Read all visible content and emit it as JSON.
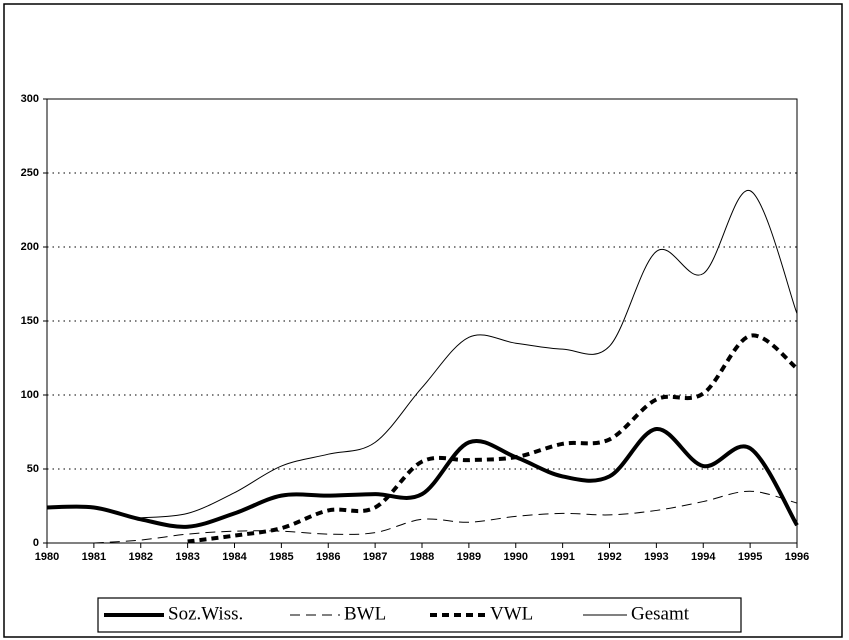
{
  "chart_data": {
    "type": "line",
    "categories": [
      "1980",
      "1981",
      "1982",
      "1983",
      "1984",
      "1985",
      "1986",
      "1987",
      "1988",
      "1989",
      "1990",
      "1991",
      "1992",
      "1993",
      "1994",
      "1995",
      "1996"
    ],
    "series": [
      {
        "name": "Soz.Wiss.",
        "color": "#000000",
        "line_width": 4,
        "dash": "none",
        "values": [
          24,
          24,
          16,
          11,
          20,
          32,
          32,
          33,
          33,
          68,
          58,
          45,
          45,
          77,
          52,
          64,
          12
        ]
      },
      {
        "name": "BWL",
        "color": "#000000",
        "line_width": 1,
        "dash": "10 6",
        "values": [
          null,
          0,
          2,
          6,
          8,
          8,
          6,
          7,
          16,
          14,
          18,
          20,
          19,
          22,
          28,
          35,
          27
        ]
      },
      {
        "name": "VWL",
        "color": "#000000",
        "line_width": 4,
        "dash": "7 5",
        "values": [
          null,
          null,
          null,
          1,
          5,
          10,
          22,
          24,
          55,
          56,
          58,
          67,
          70,
          97,
          101,
          140,
          118
        ]
      },
      {
        "name": "Gesamt",
        "color": "#000000",
        "line_width": 1,
        "dash": "none",
        "values": [
          null,
          null,
          17,
          20,
          34,
          52,
          60,
          68,
          105,
          139,
          135,
          131,
          133,
          197,
          182,
          238,
          155
        ]
      }
    ],
    "ylim": [
      0,
      300
    ],
    "yticks": [
      0,
      50,
      100,
      150,
      200,
      250,
      300
    ],
    "grid": true
  }
}
